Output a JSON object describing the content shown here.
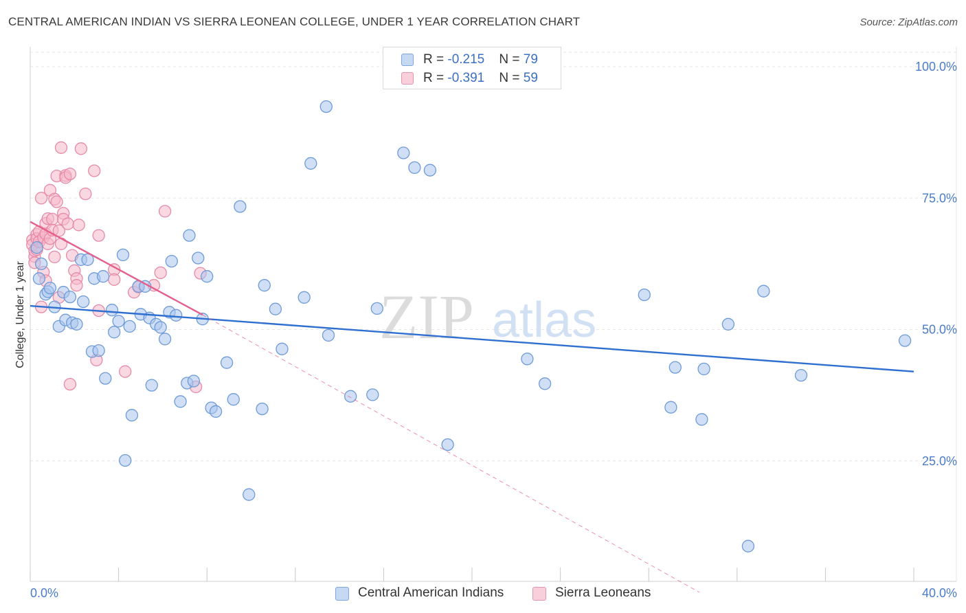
{
  "title": "CENTRAL AMERICAN INDIAN VS SIERRA LEONEAN COLLEGE, UNDER 1 YEAR CORRELATION CHART",
  "source": "Source: ZipAtlas.com",
  "watermark": {
    "zip": "ZIP",
    "atlas": "atlas"
  },
  "legend_top": {
    "rows": [
      {
        "r_label": "R = ",
        "r_value": "-0.215",
        "n_label": "N = ",
        "n_value": "79"
      },
      {
        "r_label": "R = ",
        "r_value": "-0.391",
        "n_label": "N = ",
        "n_value": "59"
      }
    ]
  },
  "legend_bottom": [
    "Central American Indians",
    "Sierra Leoneans"
  ],
  "colors": {
    "blue_fill": "#a9c5ec",
    "blue_stroke": "#6d9bd8",
    "blue_line": "#2f6fd0",
    "pink_fill": "#f5b8ca",
    "pink_stroke": "#e68aa8",
    "pink_line": "#e45f8c",
    "tick_text": "#4a7cc9",
    "grid": "#e6e6e6"
  },
  "chart_data": {
    "type": "scatter",
    "title": "CENTRAL AMERICAN INDIAN VS SIERRA LEONEAN COLLEGE, UNDER 1 YEAR CORRELATION CHART",
    "xlabel": "",
    "ylabel": "College, Under 1 year",
    "xlim": [
      0,
      40
    ],
    "ylim": [
      0,
      105
    ],
    "x_ticks": [
      "0.0%",
      "40.0%"
    ],
    "y_ticks": [
      {
        "value": 100,
        "label": "100.0%"
      },
      {
        "value": 75,
        "label": "75.0%"
      },
      {
        "value": 50,
        "label": "50.0%"
      },
      {
        "value": 25,
        "label": "25.0%"
      }
    ],
    "series": [
      {
        "name": "Central American Indians",
        "color": "blue",
        "r": -0.215,
        "n": 79,
        "trend": {
          "x0": 0,
          "y0": 54.5,
          "x1": 40,
          "y1": 42.0
        },
        "points": [
          [
            0.3,
            65.6
          ],
          [
            0.4,
            59.7
          ],
          [
            0.5,
            62.5
          ],
          [
            0.7,
            56.7
          ],
          [
            0.8,
            57.2
          ],
          [
            0.9,
            57.9
          ],
          [
            1.1,
            54.3
          ],
          [
            1.3,
            50.6
          ],
          [
            1.5,
            57.1
          ],
          [
            1.6,
            51.8
          ],
          [
            1.8,
            56.2
          ],
          [
            1.9,
            51.3
          ],
          [
            2.1,
            51.0
          ],
          [
            2.3,
            63.3
          ],
          [
            2.4,
            55.3
          ],
          [
            2.6,
            63.3
          ],
          [
            2.8,
            45.8
          ],
          [
            2.9,
            59.7
          ],
          [
            3.1,
            46.0
          ],
          [
            3.3,
            60.1
          ],
          [
            3.4,
            40.7
          ],
          [
            3.7,
            53.7
          ],
          [
            3.8,
            49.5
          ],
          [
            4.0,
            51.6
          ],
          [
            4.2,
            64.2
          ],
          [
            4.3,
            25.1
          ],
          [
            4.5,
            50.6
          ],
          [
            4.6,
            33.7
          ],
          [
            4.9,
            58.2
          ],
          [
            5.0,
            52.9
          ],
          [
            5.2,
            58.2
          ],
          [
            5.4,
            52.2
          ],
          [
            5.5,
            39.4
          ],
          [
            5.7,
            51.0
          ],
          [
            5.9,
            50.4
          ],
          [
            6.1,
            48.2
          ],
          [
            6.3,
            53.3
          ],
          [
            6.4,
            63.0
          ],
          [
            6.6,
            52.7
          ],
          [
            6.8,
            36.3
          ],
          [
            7.1,
            39.8
          ],
          [
            7.2,
            67.9
          ],
          [
            7.4,
            40.2
          ],
          [
            7.6,
            63.6
          ],
          [
            7.8,
            52.0
          ],
          [
            8.0,
            60.1
          ],
          [
            8.2,
            35.1
          ],
          [
            8.4,
            34.4
          ],
          [
            8.9,
            43.7
          ],
          [
            9.2,
            36.7
          ],
          [
            9.5,
            73.4
          ],
          [
            9.9,
            18.6
          ],
          [
            10.5,
            34.9
          ],
          [
            10.6,
            58.4
          ],
          [
            11.1,
            53.9
          ],
          [
            11.4,
            46.3
          ],
          [
            12.4,
            56.1
          ],
          [
            12.7,
            81.6
          ],
          [
            13.4,
            92.4
          ],
          [
            13.5,
            48.9
          ],
          [
            14.5,
            37.3
          ],
          [
            15.5,
            37.6
          ],
          [
            15.7,
            54.0
          ],
          [
            16.9,
            83.6
          ],
          [
            17.4,
            80.8
          ],
          [
            18.1,
            80.3
          ],
          [
            18.9,
            28.1
          ],
          [
            22.5,
            44.4
          ],
          [
            23.3,
            39.7
          ],
          [
            27.8,
            56.6
          ],
          [
            29.0,
            35.2
          ],
          [
            29.2,
            42.8
          ],
          [
            30.4,
            32.9
          ],
          [
            30.5,
            42.5
          ],
          [
            31.6,
            51.0
          ],
          [
            32.5,
            8.8
          ],
          [
            33.2,
            57.3
          ],
          [
            34.9,
            41.3
          ],
          [
            39.6,
            47.9
          ]
        ]
      },
      {
        "name": "Sierra Leoneans",
        "color": "pink",
        "r": -0.391,
        "n": 59,
        "trend": {
          "x0": 0,
          "y0": 70.5,
          "x1": 7.8,
          "y1": 52.8
        },
        "trend_extension": {
          "x0": 7.8,
          "y0": 52.8,
          "x1": 30.3,
          "y1": 0
        },
        "points": [
          [
            0.1,
            67.0
          ],
          [
            0.1,
            66.1
          ],
          [
            0.2,
            63.9
          ],
          [
            0.2,
            65.0
          ],
          [
            0.2,
            62.7
          ],
          [
            0.3,
            68.1
          ],
          [
            0.3,
            67.3
          ],
          [
            0.3,
            65.2
          ],
          [
            0.4,
            68.6
          ],
          [
            0.4,
            66.7
          ],
          [
            0.5,
            54.3
          ],
          [
            0.5,
            75.0
          ],
          [
            0.6,
            67.5
          ],
          [
            0.6,
            60.9
          ],
          [
            0.7,
            59.3
          ],
          [
            0.7,
            70.2
          ],
          [
            0.7,
            68.2
          ],
          [
            0.8,
            71.1
          ],
          [
            0.8,
            66.3
          ],
          [
            0.9,
            76.5
          ],
          [
            0.9,
            67.3
          ],
          [
            1.0,
            71.0
          ],
          [
            1.0,
            68.9
          ],
          [
            1.1,
            74.8
          ],
          [
            1.1,
            63.8
          ],
          [
            1.2,
            74.3
          ],
          [
            1.2,
            79.2
          ],
          [
            1.3,
            68.8
          ],
          [
            1.3,
            56.1
          ],
          [
            1.4,
            66.3
          ],
          [
            1.4,
            84.6
          ],
          [
            1.5,
            72.1
          ],
          [
            1.5,
            71.0
          ],
          [
            1.6,
            79.3
          ],
          [
            1.6,
            78.9
          ],
          [
            1.7,
            70.1
          ],
          [
            1.8,
            79.6
          ],
          [
            1.8,
            39.6
          ],
          [
            1.9,
            64.1
          ],
          [
            2.0,
            61.2
          ],
          [
            2.1,
            59.7
          ],
          [
            2.1,
            58.4
          ],
          [
            2.2,
            69.9
          ],
          [
            2.3,
            84.4
          ],
          [
            2.5,
            75.8
          ],
          [
            2.9,
            80.2
          ],
          [
            3.0,
            44.2
          ],
          [
            3.1,
            53.6
          ],
          [
            3.1,
            67.9
          ],
          [
            3.8,
            61.4
          ],
          [
            3.8,
            59.5
          ],
          [
            4.3,
            42.0
          ],
          [
            4.7,
            57.1
          ],
          [
            4.9,
            58.1
          ],
          [
            5.6,
            58.4
          ],
          [
            5.9,
            60.8
          ],
          [
            6.1,
            72.5
          ],
          [
            7.5,
            39.1
          ],
          [
            7.7,
            60.7
          ]
        ]
      }
    ]
  }
}
